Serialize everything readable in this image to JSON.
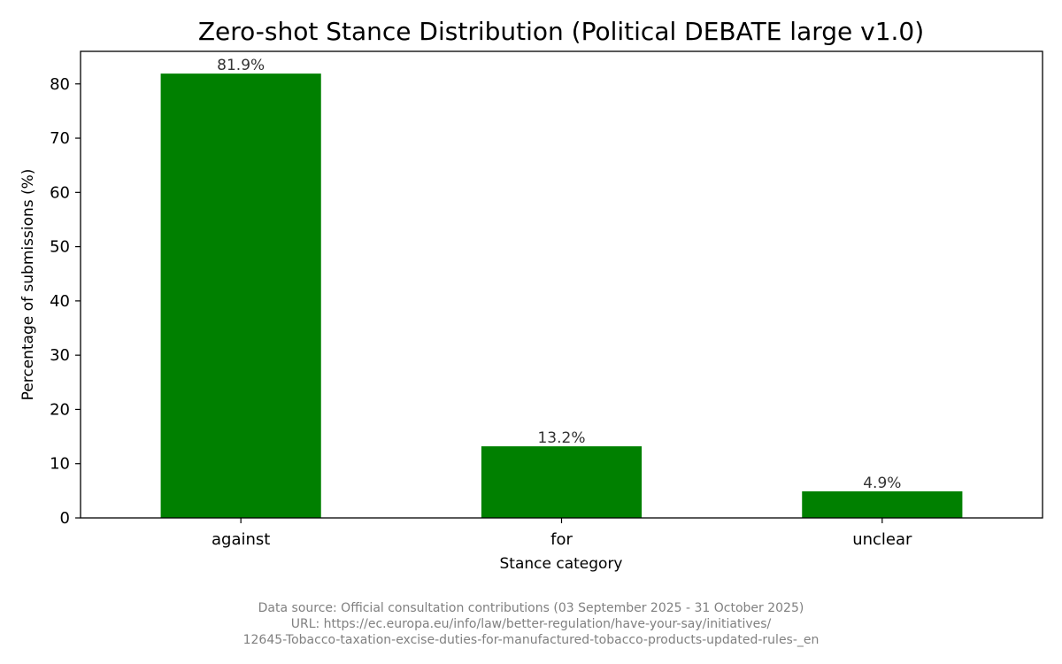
{
  "chart_data": {
    "type": "bar",
    "title": "Zero-shot Stance Distribution (Political DEBATE large v1.0)",
    "xlabel": "Stance category",
    "ylabel": "Percentage of submissions (%)",
    "categories": [
      "against",
      "for",
      "unclear"
    ],
    "values": [
      81.9,
      13.2,
      4.9
    ],
    "data_labels": [
      "81.9%",
      "13.2%",
      "4.9%"
    ],
    "ylim": [
      0,
      86
    ],
    "yticks": [
      0,
      10,
      20,
      30,
      40,
      50,
      60,
      70,
      80
    ],
    "bar_color": "#008000",
    "grid": false,
    "legend": "none"
  },
  "footer": {
    "line1": "Data source: Official consultation contributions (03 September 2025 - 31 October 2025)",
    "line2": "URL: https://ec.europa.eu/info/law/better-regulation/have-your-say/initiatives/",
    "line3": "12645-Tobacco-taxation-excise-duties-for-manufactured-tobacco-products-updated-rules-_en"
  }
}
